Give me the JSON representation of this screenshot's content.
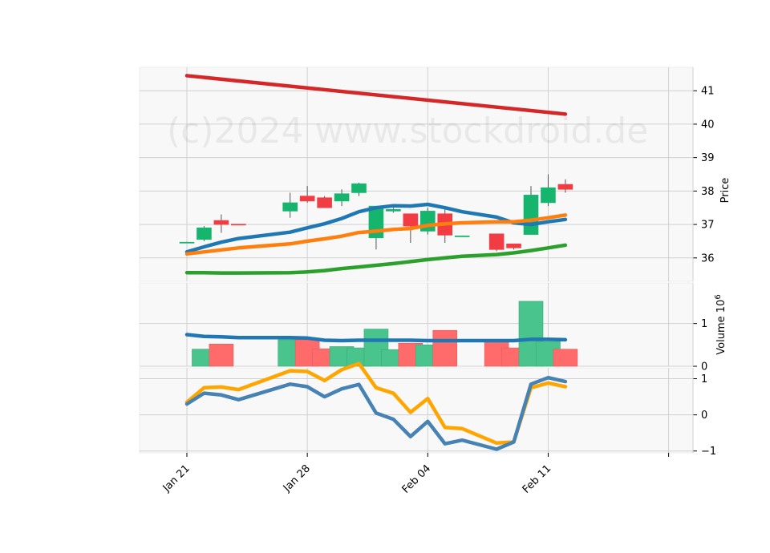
{
  "chart_data": {
    "type": "candlestick",
    "watermark": "(c)2024 www.stockdroid.de",
    "x_tick_labels": [
      "Jan 21",
      "Jan 28",
      "Feb 04",
      "Feb 11"
    ],
    "dates": [
      "2024-01-21",
      "2024-01-22",
      "2024-01-23",
      "2024-01-24",
      "2024-01-25",
      "2024-01-26",
      "2024-01-27",
      "2024-01-28",
      "2024-01-29",
      "2024-01-30",
      "2024-01-31",
      "2024-02-01",
      "2024-02-02",
      "2024-02-03",
      "2024-02-04",
      "2024-02-05",
      "2024-02-06",
      "2024-02-07",
      "2024-02-08",
      "2024-02-09",
      "2024-02-10",
      "2024-02-11",
      "2024-02-12",
      "2024-02-13",
      "2024-02-14",
      "2024-02-15",
      "2024-02-16",
      "2024-02-17",
      "2024-02-18",
      "2024-02-19",
      "2024-02-20"
    ],
    "colors": {
      "up": "#16b56e",
      "down": "#f23c44",
      "vol_up": "#48c48c",
      "vol_down": "#ff6b6b",
      "ma_fast": "#1f77b4",
      "ma_mid": "#ff7f0e",
      "ma_slow": "#2ca02c",
      "trend": "#d62728",
      "osc_1": "#4682b4",
      "osc_2": "#ffa500",
      "panel_bg": "#f8f8f8",
      "grid": "#d0d0d0"
    },
    "price_panel": {
      "ylabel": "Price",
      "ylim": [
        35.3,
        41.7
      ],
      "yticks": [
        36,
        37,
        38,
        39,
        40,
        41
      ],
      "candles": [
        {
          "date": "2024-01-21",
          "open": 36.47,
          "high": 36.48,
          "low": 36.46,
          "close": 36.47
        },
        {
          "date": "2024-01-22",
          "open": 36.55,
          "high": 36.95,
          "low": 36.5,
          "close": 36.9
        },
        {
          "date": "2024-01-23",
          "open": 37.12,
          "high": 37.3,
          "low": 36.75,
          "close": 37.0
        },
        {
          "date": "2024-01-24",
          "open": 37.01,
          "high": 37.01,
          "low": 36.99,
          "close": 37.0
        },
        {
          "date": "2024-01-27",
          "open": 37.4,
          "high": 37.95,
          "low": 37.2,
          "close": 37.65
        },
        {
          "date": "2024-01-28",
          "open": 37.85,
          "high": 38.15,
          "low": 37.65,
          "close": 37.7
        },
        {
          "date": "2024-01-29",
          "open": 37.8,
          "high": 37.85,
          "low": 37.5,
          "close": 37.5
        },
        {
          "date": "2024-01-30",
          "open": 37.7,
          "high": 38.05,
          "low": 37.55,
          "close": 37.92
        },
        {
          "date": "2024-01-31",
          "open": 37.95,
          "high": 38.25,
          "low": 37.85,
          "close": 38.22
        },
        {
          "date": "2024-02-01",
          "open": 36.6,
          "high": 37.55,
          "low": 36.25,
          "close": 37.55
        },
        {
          "date": "2024-02-02",
          "open": 37.4,
          "high": 37.5,
          "low": 37.35,
          "close": 37.45
        },
        {
          "date": "2024-02-03",
          "open": 37.32,
          "high": 37.32,
          "low": 36.45,
          "close": 36.95
        },
        {
          "date": "2024-02-04",
          "open": 36.8,
          "high": 37.5,
          "low": 36.7,
          "close": 37.4
        },
        {
          "date": "2024-02-05",
          "open": 37.32,
          "high": 37.45,
          "low": 36.45,
          "close": 36.68
        },
        {
          "date": "2024-02-06",
          "open": 36.66,
          "high": 36.67,
          "low": 36.65,
          "close": 36.66
        },
        {
          "date": "2024-02-08",
          "open": 36.72,
          "high": 36.72,
          "low": 36.2,
          "close": 36.25
        },
        {
          "date": "2024-02-09",
          "open": 36.42,
          "high": 36.42,
          "low": 36.25,
          "close": 36.3
        },
        {
          "date": "2024-02-10",
          "open": 36.7,
          "high": 38.15,
          "low": 36.7,
          "close": 37.88
        },
        {
          "date": "2024-02-11",
          "open": 37.65,
          "high": 38.5,
          "low": 37.55,
          "close": 38.1
        },
        {
          "date": "2024-02-12",
          "open": 38.2,
          "high": 38.35,
          "low": 37.95,
          "close": 38.05
        }
      ],
      "ma_fast": [
        36.18,
        36.33,
        36.47,
        36.58,
        36.77,
        36.9,
        37.02,
        37.18,
        37.38,
        37.5,
        37.56,
        37.55,
        37.6,
        37.5,
        37.38,
        37.22,
        37.05,
        37.0,
        37.08,
        37.15
      ],
      "ma_mid": [
        36.12,
        36.18,
        36.24,
        36.3,
        36.42,
        36.5,
        36.57,
        36.65,
        36.76,
        36.8,
        36.85,
        36.88,
        36.97,
        37.02,
        37.05,
        37.08,
        37.08,
        37.13,
        37.2,
        37.28
      ],
      "ma_slow": [
        35.56,
        35.56,
        35.55,
        35.55,
        35.56,
        35.58,
        35.62,
        35.68,
        35.73,
        35.78,
        35.83,
        35.89,
        35.95,
        36.0,
        36.05,
        36.1,
        36.15,
        36.22,
        36.3,
        36.38
      ],
      "trend_line": {
        "start": 41.45,
        "end": 40.3
      }
    },
    "volume_panel": {
      "ylabel": "Volume  10^6",
      "ylim": [
        0,
        1.95
      ],
      "yticks": [
        0,
        1
      ],
      "volumes": [
        0,
        0.4,
        0.52,
        0,
        0.62,
        0.62,
        0.41,
        0.46,
        0.43,
        0.87,
        0.39,
        0.54,
        0.5,
        0.84,
        0,
        0.58,
        0.43,
        1.52,
        0.58,
        0.4
      ],
      "volume_ma": [
        0.74,
        0.7,
        0.69,
        0.67,
        0.67,
        0.66,
        0.61,
        0.6,
        0.61,
        0.61,
        0.61,
        0.61,
        0.6,
        0.6,
        0.6,
        0.6,
        0.6,
        0.63,
        0.63,
        0.62
      ]
    },
    "oscillator_panel": {
      "ylim": [
        -1.05,
        1.3
      ],
      "yticks": [
        -1,
        0,
        1
      ],
      "line_1": [
        0.3,
        0.6,
        0.55,
        0.42,
        0.85,
        0.78,
        0.5,
        0.72,
        0.84,
        0.05,
        -0.12,
        -0.6,
        -0.18,
        -0.8,
        -0.7,
        -0.95,
        -0.75,
        0.85,
        1.03,
        0.92
      ],
      "line_2": [
        0.35,
        0.75,
        0.77,
        0.7,
        1.22,
        1.2,
        0.95,
        1.25,
        1.42,
        0.75,
        0.6,
        0.07,
        0.45,
        -0.35,
        -0.38,
        -0.78,
        -0.75,
        0.75,
        0.88,
        0.78
      ]
    }
  }
}
